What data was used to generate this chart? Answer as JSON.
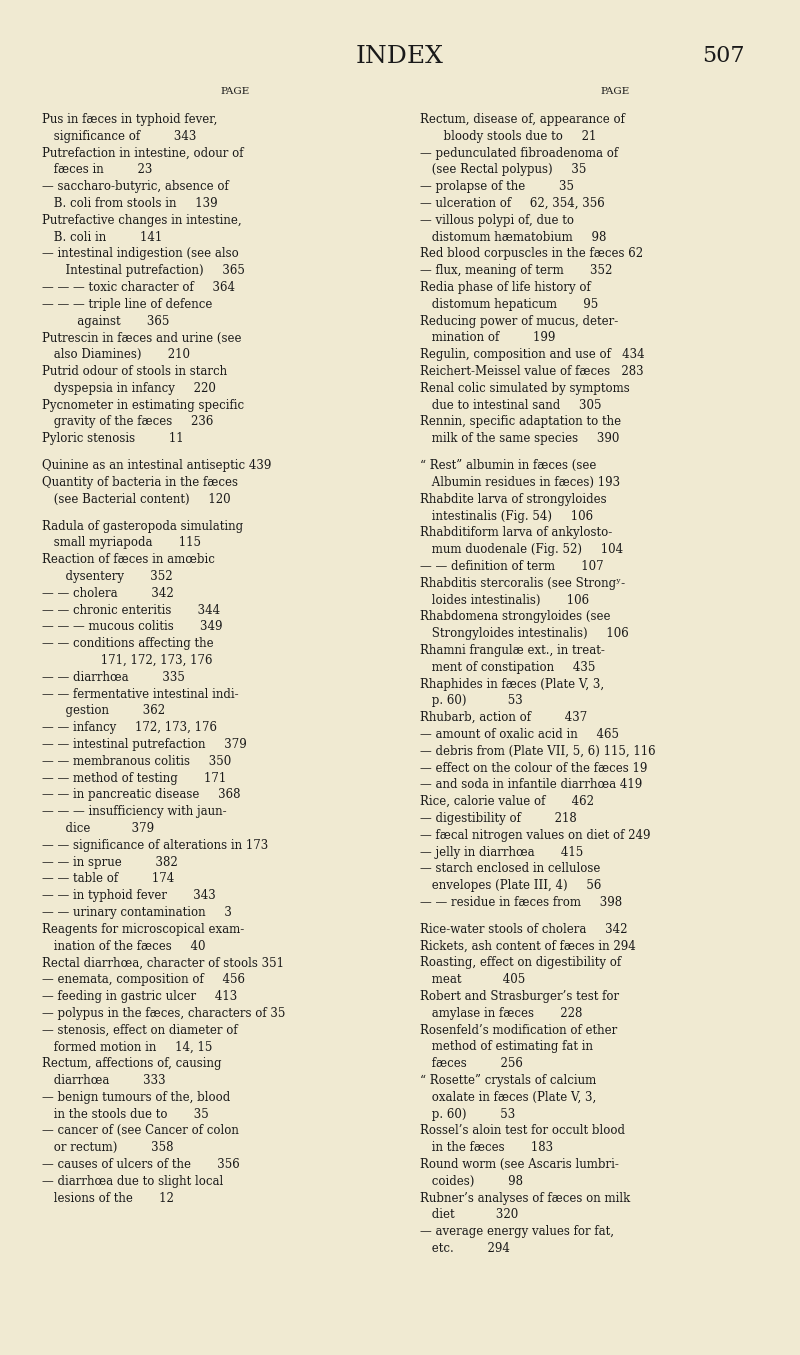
{
  "title": "INDEX",
  "page_number": "507",
  "bg_color": "#f0ead2",
  "text_color": "#1a1a1a",
  "left_column": [
    [
      "",
      "PAGE",
      false,
      false
    ],
    [
      "Pus in fæces in typhoid fever,",
      "",
      false,
      false
    ],
    [
      " significance of         343",
      "",
      false,
      false
    ],
    [
      "Putrefaction in intestine, odour of",
      "",
      false,
      false
    ],
    [
      " fæces in         23",
      "",
      false,
      false
    ],
    [
      "— saccharo-butyric, absence of",
      "",
      false,
      false
    ],
    [
      " B. coli from stools in     139",
      "",
      false,
      false
    ],
    [
      "Putrefactive changes in intestine,",
      "",
      false,
      false
    ],
    [
      " B. coli in         141",
      "",
      false,
      false
    ],
    [
      "— intestinal indigestion (see also",
      "",
      false,
      false
    ],
    [
      "  Intestinal putrefaction)     365",
      "",
      false,
      false
    ],
    [
      "— — — toxic character of     364",
      "",
      false,
      false
    ],
    [
      "— — — triple line of defence",
      "",
      false,
      false
    ],
    [
      "   against       365",
      "",
      false,
      false
    ],
    [
      "Putrescin in fæces and urine (see",
      "",
      false,
      false
    ],
    [
      " also Diamines)       210",
      "",
      false,
      false
    ],
    [
      "Putrid odour of stools in starch",
      "",
      false,
      false
    ],
    [
      " dyspepsia in infancy     220",
      "",
      false,
      false
    ],
    [
      "Pycnometer in estimating specific",
      "",
      false,
      false
    ],
    [
      " gravity of the fæces     236",
      "",
      false,
      false
    ],
    [
      "Pyloric stenosis         11",
      "",
      false,
      false
    ],
    [
      "",
      "",
      false,
      false
    ],
    [
      "Quinine as an intestinal antiseptic 439",
      "",
      true,
      false
    ],
    [
      "Quantity of bacteria in the fæces",
      "",
      false,
      false
    ],
    [
      " (see Bacterial content)     120",
      "",
      false,
      false
    ],
    [
      "",
      "",
      false,
      false
    ],
    [
      "Radula of gasteropoda simulating",
      "",
      true,
      false
    ],
    [
      " small myriapoda       115",
      "",
      false,
      false
    ],
    [
      "Reaction of fæces in amœbic",
      "",
      false,
      false
    ],
    [
      "  dysentery       352",
      "",
      false,
      false
    ],
    [
      "— — cholera         342",
      "",
      false,
      false
    ],
    [
      "— — chronic enteritis       344",
      "",
      false,
      false
    ],
    [
      "— — — mucous colitis       349",
      "",
      false,
      false
    ],
    [
      "— — conditions affecting the",
      "",
      false,
      false
    ],
    [
      "     171, 172, 173, 176",
      "",
      false,
      false
    ],
    [
      "— — diarrhœa         335",
      "",
      false,
      false
    ],
    [
      "— — fermentative intestinal indi-",
      "",
      false,
      false
    ],
    [
      "  gestion         362",
      "",
      false,
      false
    ],
    [
      "— — infancy     172, 173, 176",
      "",
      false,
      false
    ],
    [
      "— — intestinal putrefaction     379",
      "",
      false,
      false
    ],
    [
      "— — membranous colitis     350",
      "",
      false,
      false
    ],
    [
      "— — method of testing       171",
      "",
      false,
      false
    ],
    [
      "— — in pancreatic disease     368",
      "",
      false,
      false
    ],
    [
      "— — — insufficiency with jaun-",
      "",
      false,
      false
    ],
    [
      "  dice           379",
      "",
      false,
      false
    ],
    [
      "— — significance of alterations in 173",
      "",
      false,
      false
    ],
    [
      "— — in sprue         382",
      "",
      false,
      false
    ],
    [
      "— — table of         174",
      "",
      false,
      false
    ],
    [
      "— — in typhoid fever       343",
      "",
      false,
      false
    ],
    [
      "— — urinary contamination     3",
      "",
      false,
      false
    ],
    [
      "Reagents for microscopical exam-",
      "",
      false,
      false
    ],
    [
      " ination of the fæces     40",
      "",
      false,
      false
    ],
    [
      "Rectal diarrhœa, character of stools 351",
      "",
      false,
      false
    ],
    [
      "— enemata, composition of     456",
      "",
      false,
      false
    ],
    [
      "— feeding in gastric ulcer     413",
      "",
      false,
      false
    ],
    [
      "— polypus in the fæces, characters of 35",
      "",
      false,
      false
    ],
    [
      "— stenosis, effect on diameter of",
      "",
      false,
      false
    ],
    [
      " formed motion in     14, 15",
      "",
      false,
      false
    ],
    [
      "Rectum, affections of, causing",
      "",
      false,
      false
    ],
    [
      " diarrhœa         333",
      "",
      false,
      false
    ],
    [
      "— benign tumours of the, blood",
      "",
      false,
      false
    ],
    [
      " in the stools due to       35",
      "",
      false,
      false
    ],
    [
      "— cancer of (see Cancer of colon",
      "",
      false,
      false
    ],
    [
      " or rectum)         358",
      "",
      false,
      false
    ],
    [
      "— causes of ulcers of the       356",
      "",
      false,
      false
    ],
    [
      "— diarrhœa due to slight local",
      "",
      false,
      false
    ],
    [
      " lesions of the       12",
      "",
      false,
      false
    ]
  ],
  "right_column": [
    [
      "",
      "PAGE",
      false,
      false
    ],
    [
      "Rectum, disease of, appearance of",
      "",
      false,
      false
    ],
    [
      "  bloody stools due to     21",
      "",
      false,
      false
    ],
    [
      "— pedunculated fibroadenoma of",
      "",
      false,
      false
    ],
    [
      " (see Rectal polypus)     35",
      "",
      false,
      false
    ],
    [
      "— prolapse of the         35",
      "",
      false,
      false
    ],
    [
      "— ulceration of     62, 354, 356",
      "",
      false,
      false
    ],
    [
      "— villous polypi of, due to",
      "",
      false,
      false
    ],
    [
      " distomum hæmatobium     98",
      "",
      false,
      false
    ],
    [
      "Red blood corpuscles in the fæces 62",
      "",
      false,
      false
    ],
    [
      "— flux, meaning of term       352",
      "",
      false,
      false
    ],
    [
      "Redia phase of life history of",
      "",
      false,
      false
    ],
    [
      " distomum hepaticum       95",
      "",
      false,
      false
    ],
    [
      "Reducing power of mucus, deter-",
      "",
      false,
      false
    ],
    [
      " mination of         199",
      "",
      false,
      false
    ],
    [
      "Regulin, composition and use of   434",
      "",
      false,
      false
    ],
    [
      "Reichert-Meissel value of fæces   283",
      "",
      false,
      false
    ],
    [
      "Renal colic simulated by symptoms",
      "",
      false,
      false
    ],
    [
      " due to intestinal sand     305",
      "",
      false,
      false
    ],
    [
      "Rennin, specific adaptation to the",
      "",
      false,
      false
    ],
    [
      " milk of the same species     390",
      "",
      false,
      false
    ],
    [
      "",
      "",
      false,
      false
    ],
    [
      "“ Rest” albumin in fæces (see",
      "",
      false,
      false
    ],
    [
      " Albumin residues in fæces) 193",
      "",
      false,
      false
    ],
    [
      "Rhabdite larva of strongyloides",
      "",
      false,
      false
    ],
    [
      " intestinalis (Fig. 54)     106",
      "",
      false,
      false
    ],
    [
      "Rhabditiform larva of ankylosto-",
      "",
      false,
      false
    ],
    [
      " mum duodenale (Fig. 52)     104",
      "",
      false,
      false
    ],
    [
      "— — definition of term       107",
      "",
      false,
      false
    ],
    [
      "Rhabditis stercoralis (see Strongʸ-",
      "",
      false,
      false
    ],
    [
      " loides intestinalis)       106",
      "",
      false,
      false
    ],
    [
      "Rhabdomena strongyloides (see",
      "",
      false,
      false
    ],
    [
      " Strongyloides intestinalis)     106",
      "",
      false,
      false
    ],
    [
      "Rhamni frangulæ ext., in treat-",
      "",
      false,
      false
    ],
    [
      " ment of constipation     435",
      "",
      false,
      false
    ],
    [
      "Rhaphides in fæces (Plate V, 3,",
      "",
      false,
      false
    ],
    [
      " p. 60)           53",
      "",
      false,
      false
    ],
    [
      "Rhubarb, action of         437",
      "",
      false,
      false
    ],
    [
      "— amount of oxalic acid in     465",
      "",
      false,
      false
    ],
    [
      "— debris from (Plate VII, 5, 6) 115, 116",
      "",
      false,
      false
    ],
    [
      "— effect on the colour of the fæces 19",
      "",
      false,
      false
    ],
    [
      "— and soda in infantile diarrhœa 419",
      "",
      false,
      false
    ],
    [
      "Rice, calorie value of       462",
      "",
      false,
      false
    ],
    [
      "— digestibility of         218",
      "",
      false,
      false
    ],
    [
      "— fæcal nitrogen values on diet of 249",
      "",
      false,
      false
    ],
    [
      "— jelly in diarrhœa       415",
      "",
      false,
      false
    ],
    [
      "— starch enclosed in cellulose",
      "",
      false,
      false
    ],
    [
      " envelopes (Plate III, 4)     56",
      "",
      false,
      false
    ],
    [
      "— — residue in fæces from     398",
      "",
      false,
      false
    ],
    [
      "",
      "",
      false,
      false
    ],
    [
      "Rice-water stools of cholera     342",
      "",
      false,
      false
    ],
    [
      "Rickets, ash content of fæces in 294",
      "",
      false,
      false
    ],
    [
      "Roasting, effect on digestibility of",
      "",
      false,
      false
    ],
    [
      " meat           405",
      "",
      false,
      false
    ],
    [
      "Robert and Strasburger’s test for",
      "",
      false,
      false
    ],
    [
      " amylase in fæces       228",
      "",
      false,
      false
    ],
    [
      "Rosenfeld’s modification of ether",
      "",
      false,
      false
    ],
    [
      " method of estimating fat in",
      "",
      false,
      false
    ],
    [
      " fæces         256",
      "",
      false,
      false
    ],
    [
      "“ Rosette” crystals of calcium",
      "",
      false,
      false
    ],
    [
      " oxalate in fæces (Plate V, 3,",
      "",
      false,
      false
    ],
    [
      " p. 60)         53",
      "",
      false,
      false
    ],
    [
      "Rossel’s aloin test for occult blood",
      "",
      false,
      false
    ],
    [
      " in the fæces       183",
      "",
      false,
      false
    ],
    [
      "Round worm (see Ascaris lumbri-",
      "",
      false,
      false
    ],
    [
      " coides)         98",
      "",
      false,
      false
    ],
    [
      "Rubner’s analyses of fæces on milk",
      "",
      false,
      false
    ],
    [
      " diet           320",
      "",
      false,
      false
    ],
    [
      "— average energy values for fat,",
      "",
      false,
      false
    ],
    [
      " etc.         294",
      "",
      false,
      false
    ]
  ]
}
